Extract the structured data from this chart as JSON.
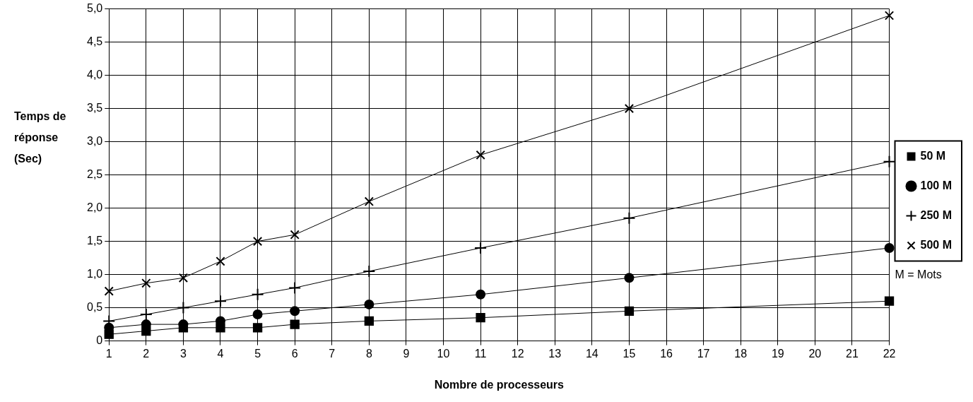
{
  "chart_data": {
    "type": "line",
    "xlabel": "Nombre de processeurs",
    "ylabel": "Temps de réponse (Sec)",
    "x": [
      1,
      2,
      3,
      4,
      5,
      6,
      8,
      11,
      15,
      22
    ],
    "series": [
      {
        "name": "50 M",
        "color": "#000000",
        "marker": "square",
        "values": [
          0.1,
          0.15,
          0.2,
          0.2,
          0.2,
          0.25,
          0.3,
          0.35,
          0.45,
          0.6
        ]
      },
      {
        "name": "100 M",
        "color": "#000000",
        "marker": "circle",
        "values": [
          0.2,
          0.25,
          0.25,
          0.3,
          0.4,
          0.45,
          0.55,
          0.7,
          0.95,
          1.4
        ]
      },
      {
        "name": "250 M",
        "color": "#000000",
        "marker": "cross",
        "values": [
          0.3,
          0.4,
          0.5,
          0.6,
          0.7,
          0.8,
          1.05,
          1.4,
          1.85,
          2.7
        ]
      },
      {
        "name": "500 M",
        "color": "#000000",
        "marker": "x",
        "values": [
          0.75,
          0.87,
          0.95,
          1.2,
          1.5,
          1.6,
          2.1,
          2.8,
          3.5,
          4.9
        ]
      }
    ],
    "xlim": [
      1,
      22
    ],
    "xticks": [
      1,
      2,
      3,
      4,
      5,
      6,
      7,
      8,
      9,
      10,
      11,
      12,
      13,
      14,
      15,
      16,
      17,
      18,
      19,
      20,
      21,
      22
    ],
    "ylim": [
      0,
      5
    ],
    "yticks": [
      0,
      {
        "value": 0.5,
        "label": "0,5"
      },
      {
        "value": 1,
        "label": "1,0"
      },
      {
        "value": 1.5,
        "label": "1,5"
      },
      {
        "value": 2,
        "label": "2,0"
      },
      {
        "value": 2.5,
        "label": "2,5"
      },
      {
        "value": 3,
        "label": "3,0"
      },
      {
        "value": 3.5,
        "label": "3,5"
      },
      {
        "value": 4,
        "label": "4,0"
      },
      {
        "value": 4.5,
        "label": "4,5"
      },
      {
        "value": 5,
        "label": "5,0"
      }
    ],
    "grid": true,
    "legend": "right",
    "annotations": [
      "M = Mots"
    ]
  }
}
